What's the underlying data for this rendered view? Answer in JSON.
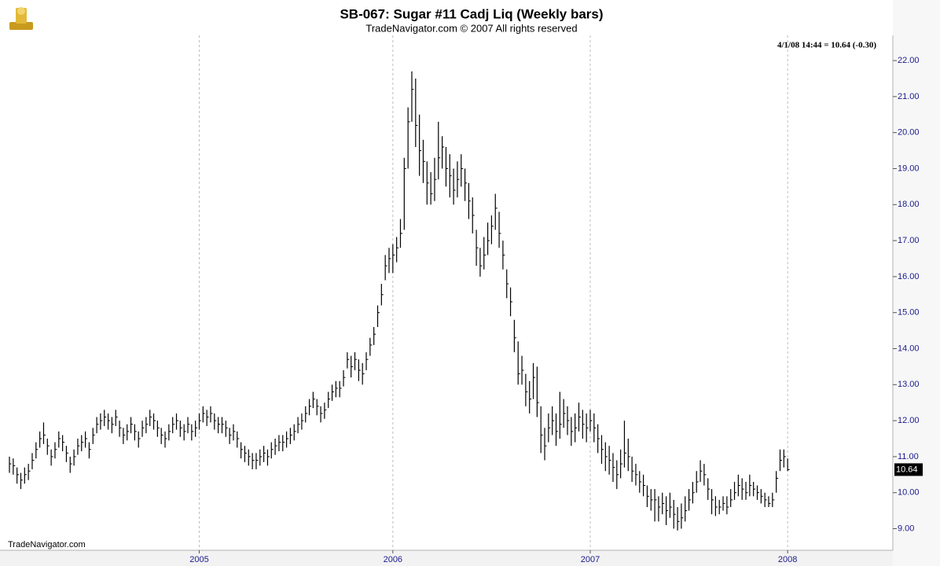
{
  "chart_data": {
    "type": "hlc",
    "title": "SB-067:  Sugar #11 Cadj Liq  (Weekly bars)",
    "subtitle": "TradeNavigator.com © 2007 All rights reserved",
    "annotation": "4/1/08 14:44 = 10.64 (-0.30)",
    "watermark": "TradeNavigator.com",
    "color": "#000000",
    "grid": true,
    "ylim": [
      8.4,
      22.7
    ],
    "yticks": [
      {
        "value": 9,
        "label": "9.00"
      },
      {
        "value": 10,
        "label": "10.00"
      },
      {
        "value": 11,
        "label": "11.00"
      },
      {
        "value": 12,
        "label": "12.00"
      },
      {
        "value": 13,
        "label": "13.00"
      },
      {
        "value": 14,
        "label": "14.00"
      },
      {
        "value": 15,
        "label": "15.00"
      },
      {
        "value": 16,
        "label": "16.00"
      },
      {
        "value": 17,
        "label": "17.00"
      },
      {
        "value": 18,
        "label": "18.00"
      },
      {
        "value": 19,
        "label": "19.00"
      },
      {
        "value": 20,
        "label": "20.00"
      },
      {
        "value": 21,
        "label": "21.00"
      },
      {
        "value": 22,
        "label": "22.00"
      }
    ],
    "categories": [
      null,
      null,
      null,
      null,
      null,
      null,
      null,
      null,
      null,
      null,
      null,
      null,
      null,
      null,
      null,
      null,
      null,
      null,
      null,
      null,
      null,
      null,
      null,
      null,
      null,
      null,
      null,
      null,
      null,
      null,
      null,
      null,
      null,
      null,
      null,
      null,
      null,
      null,
      null,
      null,
      null,
      null,
      null,
      null,
      null,
      null,
      null,
      null,
      null,
      null,
      "2005",
      null,
      null,
      null,
      null,
      null,
      null,
      null,
      null,
      null,
      null,
      null,
      null,
      null,
      null,
      null,
      null,
      null,
      null,
      null,
      null,
      null,
      null,
      null,
      null,
      null,
      null,
      null,
      null,
      null,
      null,
      null,
      null,
      null,
      null,
      null,
      null,
      null,
      null,
      null,
      null,
      null,
      null,
      null,
      null,
      null,
      null,
      null,
      null,
      null,
      null,
      "2006",
      null,
      null,
      null,
      null,
      null,
      null,
      null,
      null,
      null,
      null,
      null,
      null,
      null,
      null,
      null,
      null,
      null,
      null,
      null,
      null,
      null,
      null,
      null,
      null,
      null,
      null,
      null,
      null,
      null,
      null,
      null,
      null,
      null,
      null,
      null,
      null,
      null,
      null,
      null,
      null,
      null,
      null,
      null,
      null,
      null,
      null,
      null,
      null,
      null,
      null,
      null,
      "2007",
      null,
      null,
      null,
      null,
      null,
      null,
      null,
      null,
      null,
      null,
      null,
      null,
      null,
      null,
      null,
      null,
      null,
      null,
      null,
      null,
      null,
      null,
      null,
      null,
      null,
      null,
      null,
      null,
      null,
      null,
      null,
      null,
      null,
      null,
      null,
      null,
      null,
      null,
      null,
      null,
      null,
      null,
      null,
      null,
      null,
      null,
      null,
      null,
      null,
      null,
      null,
      "2008"
    ],
    "high": [
      11.0,
      10.95,
      10.7,
      10.55,
      10.7,
      10.8,
      11.1,
      11.4,
      11.7,
      11.95,
      11.5,
      11.2,
      11.4,
      11.7,
      11.6,
      11.3,
      11.0,
      11.2,
      11.5,
      11.6,
      11.7,
      11.4,
      11.8,
      12.1,
      12.2,
      12.3,
      12.2,
      12.1,
      12.3,
      12.0,
      11.8,
      11.9,
      12.1,
      11.9,
      11.7,
      12.0,
      12.1,
      12.3,
      12.2,
      12.0,
      11.8,
      11.7,
      11.9,
      12.1,
      12.2,
      12.0,
      11.9,
      12.1,
      11.9,
      12.0,
      12.2,
      12.4,
      12.3,
      12.4,
      12.2,
      12.1,
      12.1,
      12.0,
      11.8,
      11.9,
      11.7,
      11.4,
      11.3,
      11.2,
      11.1,
      11.1,
      11.2,
      11.3,
      11.2,
      11.4,
      11.5,
      11.6,
      11.6,
      11.7,
      11.8,
      11.9,
      12.1,
      12.2,
      12.4,
      12.6,
      12.8,
      12.6,
      12.4,
      12.5,
      12.8,
      13.0,
      13.1,
      13.1,
      13.4,
      13.9,
      13.8,
      13.9,
      13.7,
      13.6,
      13.9,
      14.3,
      14.6,
      15.2,
      15.8,
      16.6,
      16.8,
      16.9,
      17.1,
      17.6,
      19.3,
      20.7,
      21.7,
      21.5,
      20.5,
      19.8,
      19.2,
      18.9,
      19.3,
      20.3,
      19.9,
      19.6,
      19.4,
      19.0,
      19.2,
      19.4,
      19.0,
      18.6,
      18.2,
      17.3,
      16.8,
      17.1,
      17.5,
      17.7,
      18.3,
      17.8,
      17.0,
      16.2,
      15.7,
      14.8,
      14.2,
      13.8,
      13.3,
      13.1,
      13.6,
      13.5,
      12.4,
      11.8,
      12.2,
      12.4,
      12.2,
      12.8,
      12.6,
      12.4,
      12.1,
      12.2,
      12.5,
      12.3,
      12.2,
      12.3,
      12.2,
      11.9,
      11.6,
      11.4,
      11.3,
      11.1,
      10.9,
      11.2,
      12.0,
      11.5,
      11.0,
      10.8,
      10.6,
      10.5,
      10.2,
      10.1,
      10.1,
      9.9,
      10.0,
      9.9,
      10.0,
      9.8,
      9.6,
      9.7,
      9.9,
      10.1,
      10.3,
      10.6,
      10.9,
      10.8,
      10.4,
      10.1,
      9.9,
      9.8,
      9.9,
      9.9,
      10.1,
      10.3,
      10.5,
      10.4,
      10.3,
      10.5,
      10.3,
      10.2,
      10.1,
      10.0,
      9.9,
      10.0,
      10.6,
      11.2,
      11.2,
      10.95
    ],
    "low": [
      10.55,
      10.5,
      10.25,
      10.1,
      10.25,
      10.35,
      10.65,
      10.95,
      11.25,
      11.35,
      11.05,
      10.75,
      10.95,
      11.25,
      11.15,
      10.85,
      10.55,
      10.75,
      11.05,
      11.15,
      11.25,
      10.95,
      11.35,
      11.65,
      11.75,
      11.85,
      11.75,
      11.65,
      11.85,
      11.55,
      11.35,
      11.45,
      11.65,
      11.45,
      11.25,
      11.55,
      11.65,
      11.85,
      11.75,
      11.55,
      11.35,
      11.25,
      11.45,
      11.65,
      11.75,
      11.55,
      11.45,
      11.65,
      11.45,
      11.55,
      11.75,
      11.95,
      11.85,
      11.95,
      11.75,
      11.65,
      11.65,
      11.55,
      11.35,
      11.45,
      11.25,
      10.95,
      10.85,
      10.75,
      10.65,
      10.65,
      10.75,
      10.85,
      10.75,
      10.95,
      11.05,
      11.15,
      11.15,
      11.25,
      11.35,
      11.45,
      11.65,
      11.75,
      11.95,
      12.15,
      12.35,
      12.15,
      11.95,
      12.05,
      12.35,
      12.55,
      12.65,
      12.65,
      12.95,
      13.45,
      13.2,
      13.4,
      13.1,
      13.0,
      13.4,
      13.8,
      14.1,
      14.6,
      15.2,
      15.9,
      16.1,
      16.1,
      16.4,
      16.8,
      17.3,
      19.0,
      20.3,
      19.6,
      18.8,
      18.6,
      18.0,
      18.0,
      18.1,
      18.7,
      19.0,
      18.5,
      18.2,
      18.0,
      18.2,
      18.5,
      18.1,
      17.6,
      17.2,
      16.3,
      16.0,
      16.2,
      16.6,
      16.9,
      17.3,
      16.8,
      16.2,
      15.4,
      14.9,
      13.9,
      13.0,
      13.0,
      12.4,
      12.2,
      12.6,
      12.1,
      11.1,
      10.9,
      11.4,
      11.6,
      11.3,
      11.5,
      11.8,
      11.6,
      11.3,
      11.4,
      11.7,
      11.5,
      11.4,
      11.7,
      11.4,
      11.1,
      10.8,
      10.6,
      10.5,
      10.3,
      10.1,
      10.4,
      10.7,
      10.6,
      10.3,
      10.2,
      10.0,
      9.9,
      9.6,
      9.5,
      9.2,
      9.2,
      9.4,
      9.1,
      9.3,
      9.0,
      8.95,
      9.0,
      9.2,
      9.5,
      9.7,
      10.0,
      10.3,
      10.2,
      9.8,
      9.4,
      9.35,
      9.4,
      9.5,
      9.4,
      9.6,
      9.8,
      9.9,
      9.8,
      9.8,
      9.9,
      9.9,
      9.8,
      9.7,
      9.6,
      9.6,
      9.6,
      10.0,
      10.6,
      10.7,
      10.6
    ],
    "close": [
      10.8,
      10.75,
      10.5,
      10.35,
      10.5,
      10.6,
      10.9,
      11.2,
      11.5,
      11.6,
      11.3,
      11.0,
      11.2,
      11.5,
      11.4,
      11.1,
      10.8,
      11.0,
      11.3,
      11.4,
      11.5,
      11.2,
      11.6,
      11.9,
      12.0,
      12.1,
      12.0,
      11.9,
      12.1,
      11.8,
      11.6,
      11.7,
      11.9,
      11.7,
      11.5,
      11.8,
      11.9,
      12.1,
      12.0,
      11.8,
      11.6,
      11.5,
      11.7,
      11.9,
      12.0,
      11.8,
      11.7,
      11.9,
      11.7,
      11.8,
      12.0,
      12.2,
      12.1,
      12.2,
      12.0,
      11.9,
      11.9,
      11.8,
      11.6,
      11.7,
      11.5,
      11.2,
      11.1,
      11.0,
      10.9,
      10.9,
      11.0,
      11.1,
      11.0,
      11.2,
      11.3,
      11.4,
      11.4,
      11.5,
      11.6,
      11.7,
      11.9,
      12.0,
      12.2,
      12.4,
      12.6,
      12.4,
      12.2,
      12.3,
      12.6,
      12.8,
      12.9,
      12.9,
      13.2,
      13.7,
      13.5,
      13.7,
      13.4,
      13.3,
      13.7,
      14.1,
      14.4,
      15.0,
      15.5,
      16.3,
      16.5,
      16.6,
      16.8,
      17.2,
      19.0,
      20.3,
      21.2,
      20.2,
      19.5,
      19.2,
      18.6,
      18.3,
      18.7,
      19.3,
      19.6,
      19.0,
      18.8,
      18.4,
      18.7,
      19.0,
      18.6,
      18.1,
      17.7,
      16.8,
      16.3,
      16.6,
      17.0,
      17.4,
      17.9,
      17.2,
      16.6,
      15.8,
      15.3,
      14.3,
      13.3,
      13.4,
      12.8,
      12.6,
      13.2,
      12.5,
      11.6,
      11.3,
      11.8,
      12.0,
      11.7,
      11.9,
      12.2,
      12.0,
      11.7,
      11.8,
      12.1,
      11.9,
      11.8,
      12.0,
      11.8,
      11.5,
      11.2,
      11.0,
      10.9,
      10.7,
      10.5,
      10.8,
      11.1,
      11.0,
      10.6,
      10.5,
      10.3,
      10.2,
      9.9,
      9.8,
      9.8,
      9.6,
      9.7,
      9.5,
      9.6,
      9.4,
      9.2,
      9.3,
      9.5,
      9.8,
      10.0,
      10.3,
      10.6,
      10.5,
      10.1,
      9.8,
      9.6,
      9.6,
      9.7,
      9.6,
      9.8,
      10.0,
      10.2,
      10.1,
      10.0,
      10.2,
      10.1,
      10.0,
      9.9,
      9.8,
      9.7,
      9.8,
      10.4,
      10.9,
      11.0,
      10.64
    ]
  }
}
